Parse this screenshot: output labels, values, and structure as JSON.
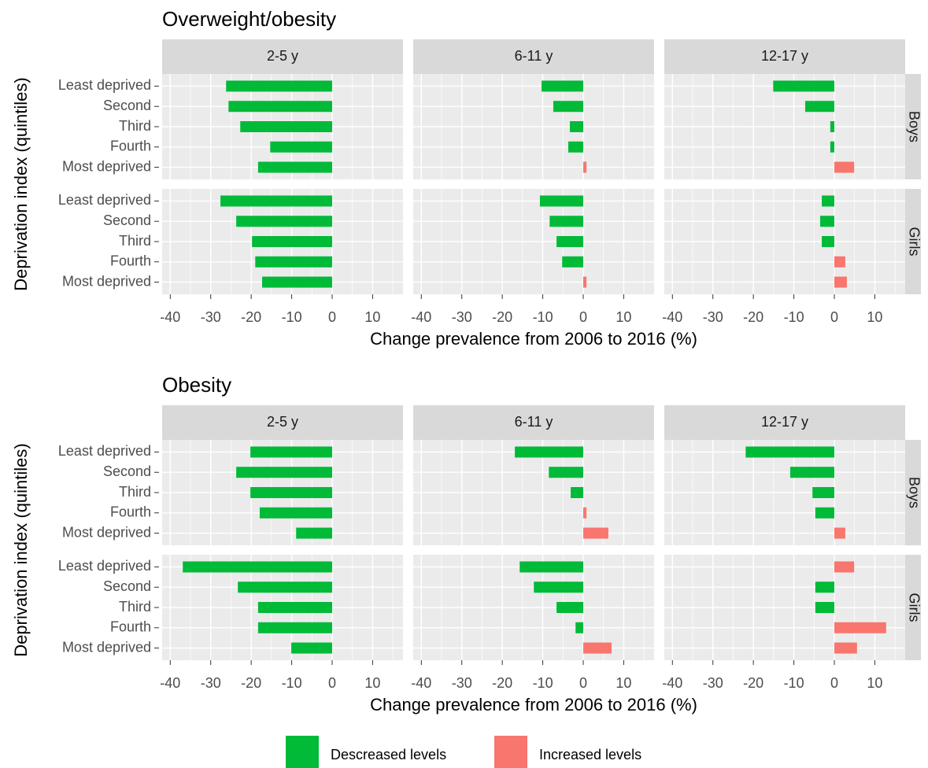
{
  "chart_data": [
    {
      "type": "bar",
      "title": "Overweight/obesity",
      "x_label": "Change prevalence from 2006 to 2016 (%)",
      "y_label": "Deprivation index (quintiles)",
      "categories": [
        "Least deprived",
        "Second",
        "Third",
        "Fourth",
        "Most deprived"
      ],
      "columns": [
        "2-5 y",
        "6-11 y",
        "12-17 y"
      ],
      "rows": [
        "Boys",
        "Girls"
      ],
      "values": [
        [
          [
            -26.2,
            -25.6,
            -22.7,
            -15.3,
            -18.3
          ],
          [
            -10.3,
            -7.4,
            -3.3,
            -3.7,
            0.8
          ],
          [
            -15.1,
            -7.2,
            -1.0,
            -1.0,
            4.9
          ]
        ],
        [
          [
            -27.6,
            -23.7,
            -19.8,
            -19.0,
            -17.3
          ],
          [
            -10.7,
            -8.3,
            -6.6,
            -5.2,
            0.8
          ],
          [
            -3.1,
            -3.5,
            -3.1,
            2.7,
            3.1
          ]
        ]
      ],
      "xlim": [
        -42,
        17.5
      ],
      "xticks": [
        -40,
        -30,
        -20,
        -10,
        0,
        10
      ],
      "grid": true
    },
    {
      "type": "bar",
      "title": "Obesity",
      "x_label": "Change prevalence from 2006 to 2016 (%)",
      "y_label": "Deprivation index (quintiles)",
      "categories": [
        "Least deprived",
        "Second",
        "Third",
        "Fourth",
        "Most deprived"
      ],
      "columns": [
        "2-5 y",
        "6-11 y",
        "12-17 y"
      ],
      "rows": [
        "Boys",
        "Girls"
      ],
      "values": [
        [
          [
            -20.2,
            -23.7,
            -20.2,
            -17.9,
            -8.9
          ],
          [
            -16.9,
            -8.5,
            -3.1,
            0.8,
            6.2
          ],
          [
            -21.9,
            -10.9,
            -5.4,
            -4.7,
            2.7
          ]
        ],
        [
          [
            -36.9,
            -23.3,
            -18.3,
            -18.3,
            -10.1
          ],
          [
            -15.7,
            -12.2,
            -6.6,
            -1.9,
            7.0
          ],
          [
            4.9,
            -4.7,
            -4.7,
            12.8,
            5.6
          ]
        ]
      ],
      "xlim": [
        -42,
        17.5
      ],
      "xticks": [
        -40,
        -30,
        -20,
        -10,
        0,
        10
      ],
      "grid": true
    }
  ],
  "legend": {
    "position": "bottom",
    "entries": [
      {
        "name": "Descreased levels",
        "color": "#00BA38"
      },
      {
        "name": "Increased levels",
        "color": "#F8766D"
      }
    ]
  }
}
